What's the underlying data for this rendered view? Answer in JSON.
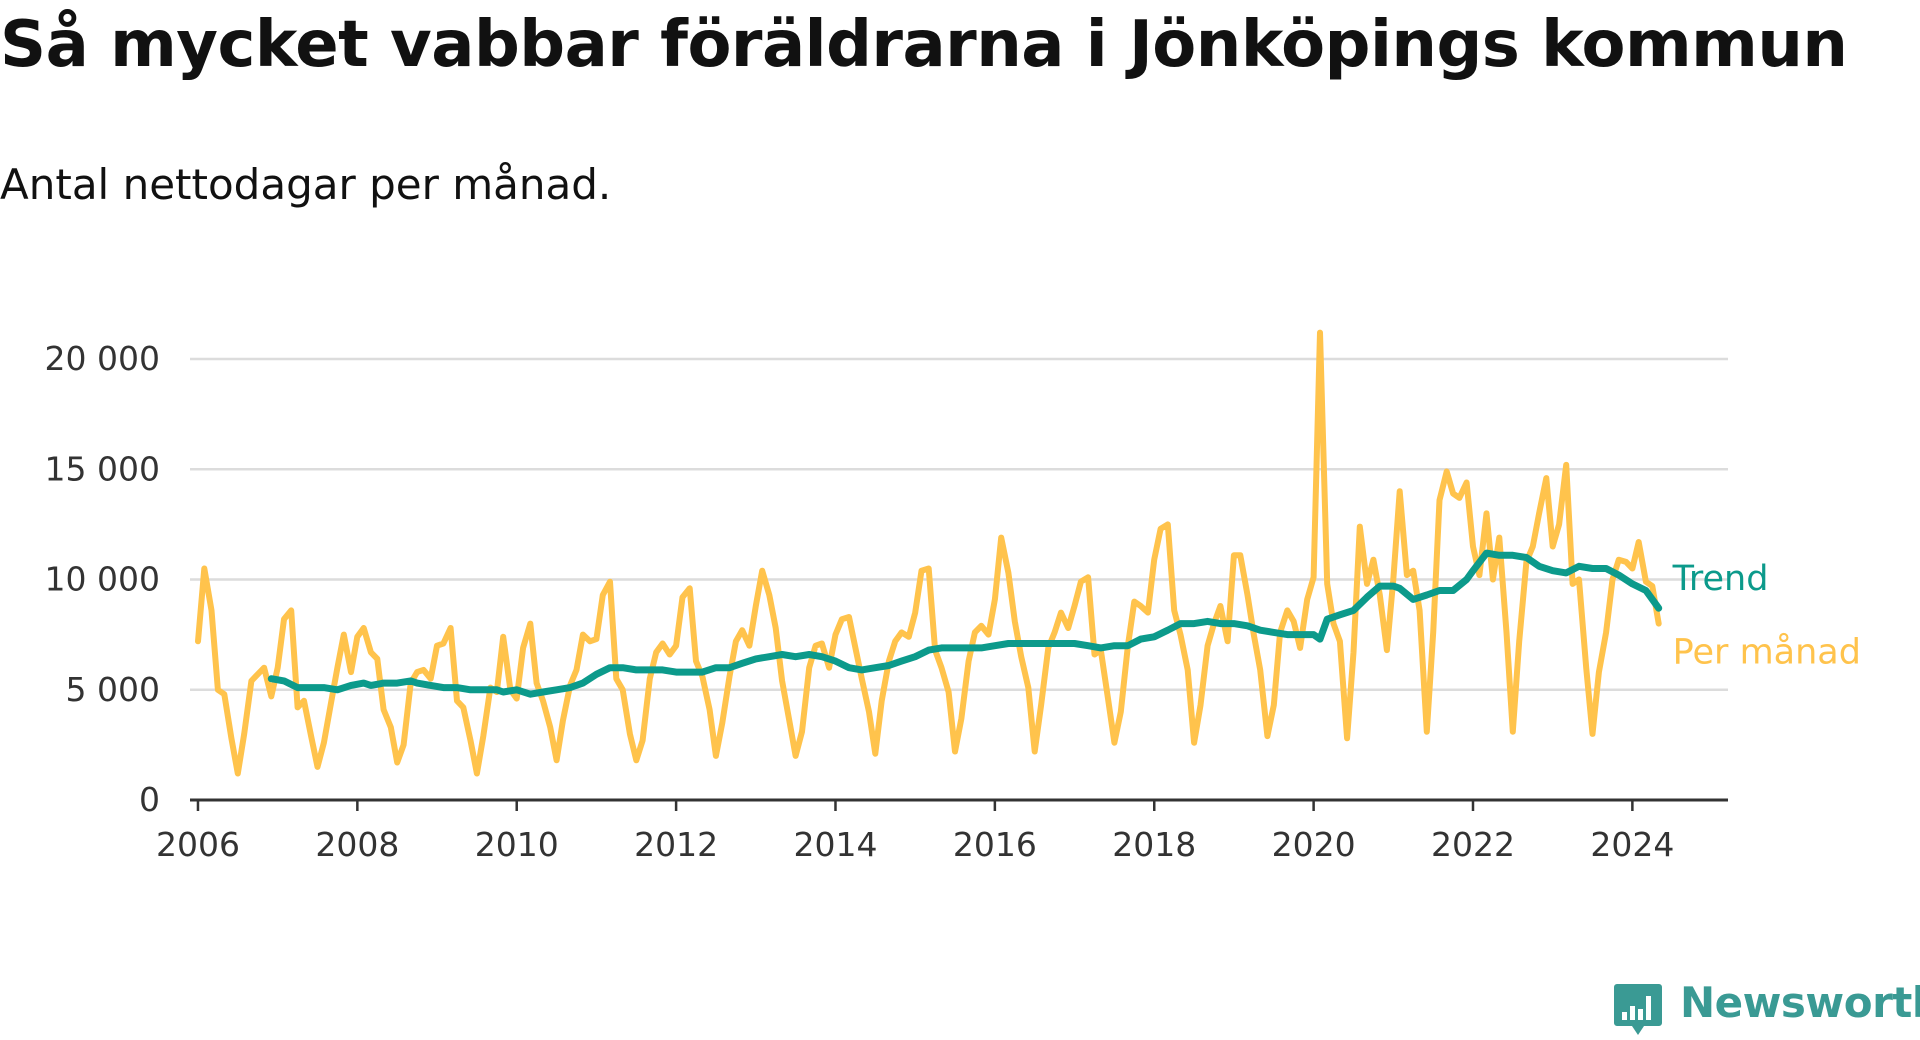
{
  "header": {
    "title": "Så mycket vabbar föräldrarna i Jönköpings kommun",
    "subtitle": "Antal nettodagar per månad."
  },
  "brand": {
    "name": "Newsworthy",
    "color": "#3a9a94",
    "icon": "bar-chart-speech-bubble-icon"
  },
  "chart_data": {
    "type": "line",
    "title": "Så mycket vabbar föräldrarna i Jönköpings kommun",
    "subtitle": "Antal nettodagar per månad.",
    "xlabel": "",
    "ylabel": "",
    "xlim": [
      2005.9,
      2025.2
    ],
    "ylim": [
      0,
      21000
    ],
    "grid": true,
    "x_ticks": [
      2006,
      2008,
      2010,
      2012,
      2014,
      2016,
      2018,
      2020,
      2022,
      2024
    ],
    "x_tick_labels": [
      "2006",
      "2008",
      "2010",
      "2012",
      "2014",
      "2016",
      "2018",
      "2020",
      "2022",
      "2024"
    ],
    "y_ticks": [
      0,
      5000,
      10000,
      15000,
      20000
    ],
    "y_tick_labels": [
      "0",
      "5 000",
      "10 000",
      "15 000",
      "20 000"
    ],
    "legend": "direct labels at right end of lines",
    "series": [
      {
        "name": "Per månad",
        "color": "#ffc34c",
        "x": [
          2006.0,
          2006.08,
          2006.17,
          2006.25,
          2006.33,
          2006.42,
          2006.5,
          2006.58,
          2006.67,
          2006.75,
          2006.83,
          2006.92,
          2007.0,
          2007.08,
          2007.17,
          2007.25,
          2007.33,
          2007.42,
          2007.5,
          2007.58,
          2007.67,
          2007.75,
          2007.83,
          2007.92,
          2008.0,
          2008.08,
          2008.17,
          2008.25,
          2008.33,
          2008.42,
          2008.5,
          2008.58,
          2008.67,
          2008.75,
          2008.83,
          2008.92,
          2009.0,
          2009.08,
          2009.17,
          2009.25,
          2009.33,
          2009.42,
          2009.5,
          2009.58,
          2009.67,
          2009.75,
          2009.83,
          2009.92,
          2010.0,
          2010.08,
          2010.17,
          2010.25,
          2010.33,
          2010.42,
          2010.5,
          2010.58,
          2010.67,
          2010.75,
          2010.83,
          2010.92,
          2011.0,
          2011.08,
          2011.17,
          2011.25,
          2011.33,
          2011.42,
          2011.5,
          2011.58,
          2011.67,
          2011.75,
          2011.83,
          2011.92,
          2012.0,
          2012.08,
          2012.17,
          2012.25,
          2012.33,
          2012.42,
          2012.5,
          2012.58,
          2012.67,
          2012.75,
          2012.83,
          2012.92,
          2013.0,
          2013.08,
          2013.17,
          2013.25,
          2013.33,
          2013.42,
          2013.5,
          2013.58,
          2013.67,
          2013.75,
          2013.83,
          2013.92,
          2014.0,
          2014.08,
          2014.17,
          2014.25,
          2014.33,
          2014.42,
          2014.5,
          2014.58,
          2014.67,
          2014.75,
          2014.83,
          2014.92,
          2015.0,
          2015.08,
          2015.17,
          2015.25,
          2015.33,
          2015.42,
          2015.5,
          2015.58,
          2015.67,
          2015.75,
          2015.83,
          2015.92,
          2016.0,
          2016.08,
          2016.17,
          2016.25,
          2016.33,
          2016.42,
          2016.5,
          2016.58,
          2016.67,
          2016.75,
          2016.83,
          2016.92,
          2017.0,
          2017.08,
          2017.17,
          2017.25,
          2017.33,
          2017.42,
          2017.5,
          2017.58,
          2017.67,
          2017.75,
          2017.83,
          2017.92,
          2018.0,
          2018.08,
          2018.17,
          2018.25,
          2018.33,
          2018.42,
          2018.5,
          2018.58,
          2018.67,
          2018.75,
          2018.83,
          2018.92,
          2019.0,
          2019.08,
          2019.17,
          2019.25,
          2019.33,
          2019.42,
          2019.5,
          2019.58,
          2019.67,
          2019.75,
          2019.83,
          2019.92,
          2020.0,
          2020.08,
          2020.17,
          2020.25,
          2020.33,
          2020.42,
          2020.5,
          2020.58,
          2020.67,
          2020.75,
          2020.83,
          2020.92,
          2021.0,
          2021.08,
          2021.17,
          2021.25,
          2021.33,
          2021.42,
          2021.5,
          2021.58,
          2021.67,
          2021.75,
          2021.83,
          2021.92,
          2022.0,
          2022.08,
          2022.17,
          2022.25,
          2022.33,
          2022.42,
          2022.5,
          2022.58,
          2022.67,
          2022.75,
          2022.83,
          2022.92,
          2023.0,
          2023.08,
          2023.17,
          2023.25,
          2023.33,
          2023.42,
          2023.5,
          2023.58,
          2023.67,
          2023.75,
          2023.83,
          2023.92,
          2024.0,
          2024.08,
          2024.17,
          2024.25,
          2024.33
        ],
        "values": [
          7200,
          10500,
          8600,
          5000,
          4800,
          2800,
          1200,
          3000,
          5400,
          5700,
          6000,
          4700,
          6000,
          8200,
          8600,
          4200,
          4500,
          2900,
          1500,
          2600,
          4400,
          6000,
          7500,
          5800,
          7400,
          7800,
          6700,
          6400,
          4100,
          3300,
          1700,
          2500,
          5300,
          5800,
          5900,
          5500,
          7000,
          7100,
          7800,
          4500,
          4200,
          2700,
          1200,
          2900,
          5100,
          4900,
          7400,
          5000,
          4600,
          6900,
          8000,
          5300,
          4500,
          3300,
          1800,
          3600,
          5200,
          5900,
          7500,
          7200,
          7300,
          9300,
          9900,
          5500,
          5000,
          3000,
          1800,
          2700,
          5500,
          6700,
          7100,
          6600,
          7000,
          9200,
          9600,
          6300,
          5600,
          4100,
          2000,
          3500,
          5600,
          7200,
          7700,
          7000,
          8800,
          10400,
          9300,
          7800,
          5400,
          3600,
          2000,
          3100,
          6000,
          7000,
          7100,
          6000,
          7500,
          8200,
          8300,
          6900,
          5500,
          4000,
          2100,
          4500,
          6300,
          7200,
          7600,
          7400,
          8500,
          10400,
          10500,
          6800,
          6000,
          4900,
          2200,
          3700,
          6300,
          7600,
          7900,
          7500,
          9100,
          11900,
          10300,
          8100,
          6500,
          5100,
          2200,
          4300,
          6900,
          7600,
          8500,
          7800,
          8800,
          9900,
          10100,
          6600,
          6800,
          4600,
          2600,
          4000,
          7000,
          9000,
          8800,
          8500,
          10900,
          12300,
          12500,
          8600,
          7500,
          5900,
          2600,
          4300,
          7000,
          8000,
          8800,
          7200,
          11100,
          11100,
          9300,
          7500,
          5900,
          2900,
          4300,
          7600,
          8600,
          8100,
          6900,
          9100,
          10100,
          21200,
          9800,
          8000,
          7200,
          2800,
          6700,
          12400,
          9800,
          10900,
          9300,
          6800,
          10000,
          14000,
          10200,
          10400,
          8600,
          3100,
          7600,
          13600,
          14900,
          13900,
          13700,
          14400,
          11500,
          10200,
          13000,
          10000,
          11900,
          7600,
          3100,
          7200,
          10800,
          11500,
          13000,
          14600,
          11500,
          12500,
          15200,
          9800,
          10000,
          6000,
          3000,
          5800,
          7600,
          10000,
          10900,
          10800,
          10500,
          11700,
          9900,
          9700,
          8000
        ]
      },
      {
        "name": "Trend",
        "color": "#0c9a8b",
        "x": [
          2006.92,
          2007.08,
          2007.25,
          2007.42,
          2007.58,
          2007.75,
          2007.92,
          2008.08,
          2008.17,
          2008.33,
          2008.5,
          2008.67,
          2008.75,
          2008.92,
          2009.08,
          2009.25,
          2009.42,
          2009.58,
          2009.75,
          2009.83,
          2010.0,
          2010.17,
          2010.33,
          2010.5,
          2010.67,
          2010.83,
          2011.0,
          2011.17,
          2011.33,
          2011.5,
          2011.67,
          2011.83,
          2012.0,
          2012.17,
          2012.33,
          2012.5,
          2012.67,
          2012.83,
          2013.0,
          2013.17,
          2013.33,
          2013.5,
          2013.67,
          2013.83,
          2014.0,
          2014.17,
          2014.33,
          2014.5,
          2014.67,
          2014.83,
          2015.0,
          2015.17,
          2015.33,
          2015.5,
          2015.67,
          2015.83,
          2016.0,
          2016.17,
          2016.33,
          2016.5,
          2016.67,
          2016.83,
          2017.0,
          2017.17,
          2017.33,
          2017.5,
          2017.67,
          2017.83,
          2018.0,
          2018.17,
          2018.33,
          2018.5,
          2018.67,
          2018.83,
          2019.0,
          2019.17,
          2019.33,
          2019.5,
          2019.67,
          2019.83,
          2020.0,
          2020.08,
          2020.17,
          2020.33,
          2020.5,
          2020.67,
          2020.83,
          2021.0,
          2021.08,
          2021.25,
          2021.42,
          2021.58,
          2021.75,
          2021.92,
          2022.0,
          2022.17,
          2022.33,
          2022.5,
          2022.67,
          2022.83,
          2023.0,
          2023.17,
          2023.33,
          2023.5,
          2023.67,
          2023.83,
          2024.0,
          2024.17,
          2024.33
        ],
        "values": [
          5500,
          5400,
          5100,
          5100,
          5100,
          5000,
          5200,
          5300,
          5200,
          5300,
          5300,
          5400,
          5300,
          5200,
          5100,
          5100,
          5000,
          5000,
          5000,
          4900,
          5000,
          4800,
          4900,
          5000,
          5100,
          5300,
          5700,
          6000,
          6000,
          5900,
          5900,
          5900,
          5800,
          5800,
          5800,
          6000,
          6000,
          6200,
          6400,
          6500,
          6600,
          6500,
          6600,
          6500,
          6300,
          6000,
          5900,
          6000,
          6100,
          6300,
          6500,
          6800,
          6900,
          6900,
          6900,
          6900,
          7000,
          7100,
          7100,
          7100,
          7100,
          7100,
          7100,
          7000,
          6900,
          7000,
          7000,
          7300,
          7400,
          7700,
          8000,
          8000,
          8100,
          8000,
          8000,
          7900,
          7700,
          7600,
          7500,
          7500,
          7500,
          7300,
          8200,
          8400,
          8600,
          9200,
          9700,
          9700,
          9600,
          9100,
          9300,
          9500,
          9500,
          10000,
          10400,
          11200,
          11100,
          11100,
          11000,
          10600,
          10400,
          10300,
          10600,
          10500,
          10500,
          10200,
          9800,
          9500,
          8700
        ]
      }
    ]
  }
}
